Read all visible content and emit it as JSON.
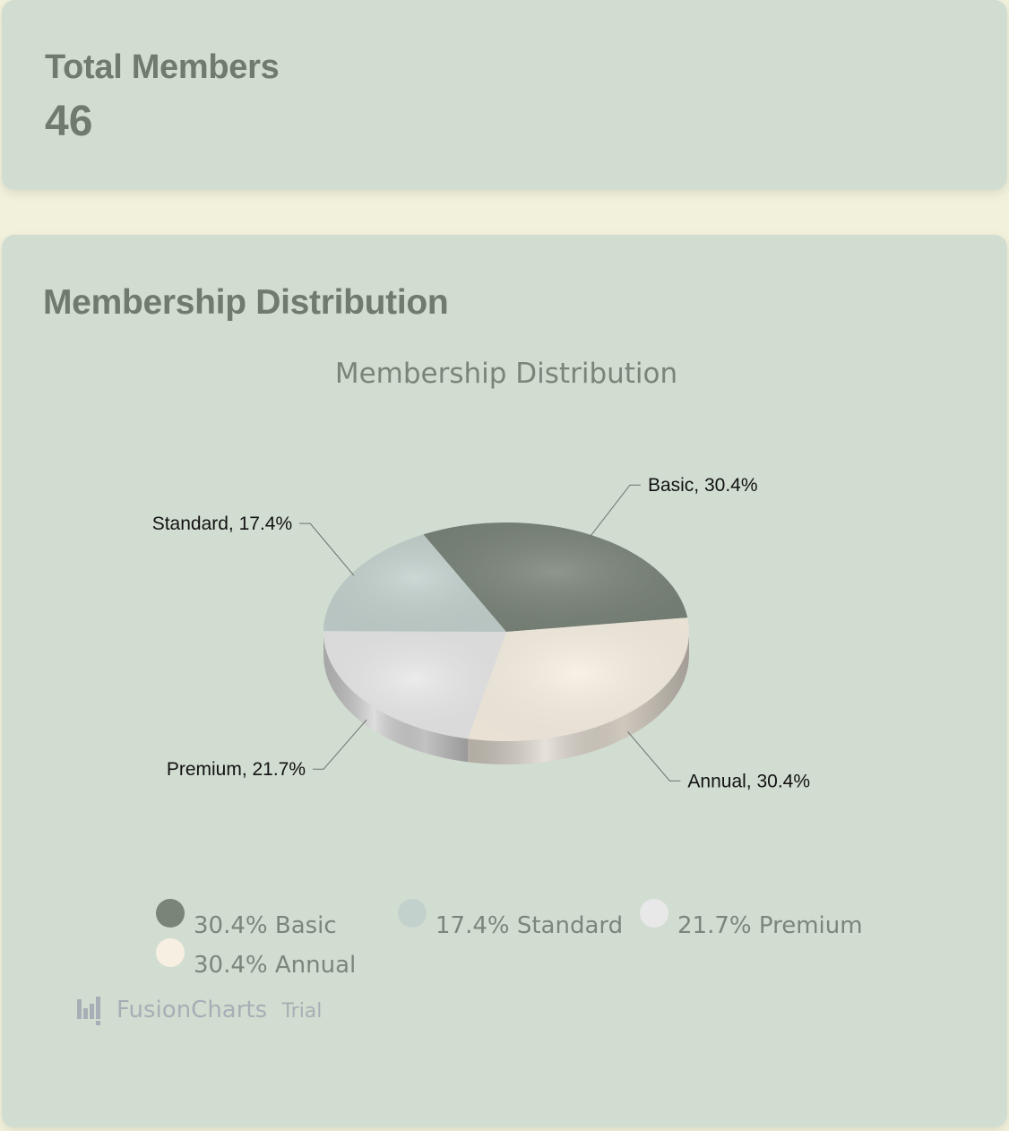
{
  "members_card": {
    "title": "Total Members",
    "value": "46"
  },
  "distribution_card": {
    "title": "Membership Distribution"
  },
  "chart_data": {
    "type": "pie",
    "title": "Membership Distribution",
    "style": "3d",
    "total": 46,
    "slices": [
      {
        "name": "Basic",
        "value": 14,
        "percent": 30.4,
        "label": "Basic, 30.4%",
        "legend": "30.4% Basic",
        "color": "#7a8479"
      },
      {
        "name": "Annual",
        "value": 14,
        "percent": 30.4,
        "label": "Annual, 30.4%",
        "legend": "30.4% Annual",
        "color": "#f7efe2"
      },
      {
        "name": "Premium",
        "value": 10,
        "percent": 21.7,
        "label": "Premium, 21.7%",
        "legend": "21.7% Premium",
        "color": "#e8e8e9"
      },
      {
        "name": "Standard",
        "value": 8,
        "percent": 17.4,
        "label": "Standard, 17.4%",
        "legend": "17.4% Standard",
        "color": "#c3d1cd"
      }
    ],
    "legend_order": [
      "Basic",
      "Standard",
      "Premium",
      "Annual"
    ],
    "legend_position": "bottom",
    "watermark": {
      "brand": "FusionCharts",
      "suffix": "Trial"
    }
  },
  "colors": {
    "page_background": "#f2f1dc",
    "card_background": "#d2ddd1",
    "heading": "#6f7b6f"
  }
}
